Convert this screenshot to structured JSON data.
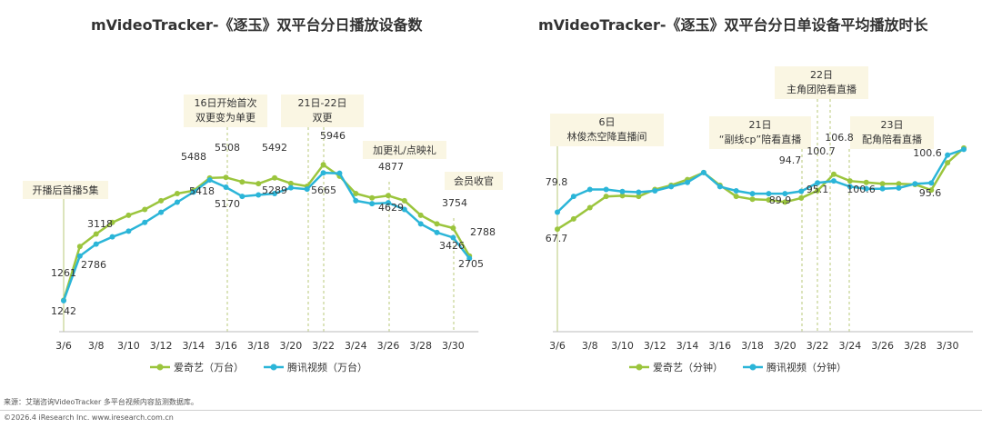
{
  "colors": {
    "iqiyi": "#9BC53D",
    "tencent": "#2BB5D8",
    "callout_bg": "#FAF6E3",
    "dash": "#b9c97a"
  },
  "chart_data": [
    {
      "type": "line",
      "title": "mVideoTracker-《逐玉》双平台分日播放设备数",
      "x": [
        "3/6",
        "3/7",
        "3/8",
        "3/9",
        "3/10",
        "3/11",
        "3/12",
        "3/13",
        "3/14",
        "3/15",
        "3/16",
        "3/17",
        "3/18",
        "3/19",
        "3/20",
        "3/21",
        "3/22",
        "3/23",
        "3/24",
        "3/25",
        "3/26",
        "3/27",
        "3/28",
        "3/29",
        "3/30",
        "3/31"
      ],
      "x_tick_labels": [
        "3/6",
        "3/8",
        "3/10",
        "3/12",
        "3/14",
        "3/16",
        "3/18",
        "3/20",
        "3/22",
        "3/24",
        "3/26",
        "3/28",
        "3/30"
      ],
      "ylim": [
        800,
        7400
      ],
      "series": [
        {
          "name": "爱奇艺（万台）",
          "values": [
            1261,
            3118,
            3550,
            3950,
            4200,
            4400,
            4700,
            4950,
            5050,
            5488,
            5508,
            5350,
            5289,
            5492,
            5300,
            5200,
            5946,
            5550,
            4950,
            4800,
            4877,
            4700,
            4200,
            3900,
            3754,
            2788
          ]
        },
        {
          "name": "腾讯视频（万台）",
          "values": [
            1242,
            2786,
            3200,
            3450,
            3650,
            3950,
            4300,
            4650,
            5000,
            5418,
            5170,
            4850,
            4900,
            4950,
            5150,
            5100,
            5665,
            5650,
            4700,
            4600,
            4629,
            4400,
            3900,
            3600,
            3426,
            2705
          ]
        }
      ],
      "annotations": [
        {
          "label": "开播后首播5集",
          "dashed": false
        },
        {
          "label": "16日开始首次\n双更变为单更",
          "dashed": true
        },
        {
          "label": "21日-22日\n双更",
          "dashed": true
        },
        {
          "label": "加更礼/点映礼",
          "dashed": true
        },
        {
          "label": "会员收官",
          "dashed": true
        }
      ],
      "data_labels": [
        "1261",
        "1242",
        "3118",
        "2786",
        "5488",
        "5418",
        "5508",
        "5170",
        "5492",
        "5289",
        "5946",
        "5665",
        "4877",
        "4629",
        "3754",
        "2788",
        "3426",
        "2705"
      ],
      "legend": [
        "爱奇艺（万台）",
        "腾讯视频（万台）"
      ]
    },
    {
      "type": "line",
      "title": "mVideoTracker-《逐玉》双平台分日单设备平均播放时长",
      "x": [
        "3/6",
        "3/7",
        "3/8",
        "3/9",
        "3/10",
        "3/11",
        "3/12",
        "3/13",
        "3/14",
        "3/15",
        "3/16",
        "3/17",
        "3/18",
        "3/19",
        "3/20",
        "3/21",
        "3/22",
        "3/23",
        "3/24",
        "3/25",
        "3/26",
        "3/27",
        "3/28",
        "3/29",
        "3/30",
        "3/31"
      ],
      "x_tick_labels": [
        "3/6",
        "3/8",
        "3/10",
        "3/12",
        "3/14",
        "3/16",
        "3/18",
        "3/20",
        "3/22",
        "3/24",
        "3/26",
        "3/28",
        "3/30"
      ],
      "ylim": [
        40,
        150
      ],
      "series": [
        {
          "name": "爱奇艺（分钟）",
          "values": [
            67.7,
            75.0,
            83.0,
            91.0,
            91.5,
            91.0,
            96.0,
            99.0,
            103.0,
            108.0,
            99.0,
            91.0,
            89.0,
            88.5,
            87.0,
            89.9,
            95.1,
            106.8,
            102.0,
            101.0,
            100.0,
            100.0,
            99.5,
            95.6,
            115.0,
            125.5
          ]
        },
        {
          "name": "腾讯视频（分钟）",
          "values": [
            79.8,
            91.0,
            96.0,
            96.0,
            94.5,
            94.0,
            95.0,
            98.0,
            101.0,
            108.0,
            98.0,
            95.0,
            93.0,
            93.0,
            93.0,
            94.7,
            100.7,
            102.0,
            98.0,
            96.5,
            96.5,
            97.0,
            100.0,
            100.6,
            120.5,
            124.5
          ]
        }
      ],
      "annotations": [
        {
          "label": "6日\n林俊杰空降直播间",
          "dashed": false
        },
        {
          "label": "21日\n“副线cp”陪看直播",
          "dashed": true
        },
        {
          "label": "22日\n主角团陪看直播",
          "dashed": true
        },
        {
          "label": "23日\n配角陪看直播",
          "dashed": true
        }
      ],
      "data_labels": [
        "79.8",
        "67.7",
        "94.7",
        "100.7",
        "106.8",
        "89.9",
        "95.1",
        "100.6",
        "100.6",
        "95.6"
      ],
      "legend": [
        "爱奇艺（分钟）",
        "腾讯视频（分钟）"
      ]
    }
  ],
  "footer": {
    "source": "来源：艾瑞咨询VideoTracker 多平台视频内容监测数据库。",
    "copyright": "©2026.4 iResearch Inc. www.iresearch.com.cn"
  }
}
